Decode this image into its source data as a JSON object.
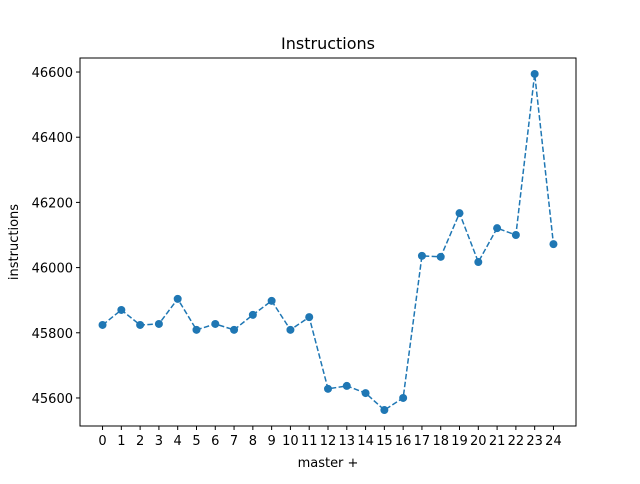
{
  "chart_data": {
    "type": "line",
    "title": "Instructions",
    "x_label": "master +",
    "y_label": "instructions",
    "x": [
      0,
      1,
      2,
      3,
      4,
      5,
      6,
      7,
      8,
      9,
      10,
      11,
      12,
      13,
      14,
      15,
      16,
      17,
      18,
      19,
      20,
      21,
      22,
      23,
      24
    ],
    "values": [
      45824,
      45870,
      45824,
      45827,
      45904,
      45809,
      45827,
      45809,
      45855,
      45898,
      45809,
      45848,
      45628,
      45637,
      45615,
      45563,
      45600,
      46036,
      46033,
      46167,
      46017,
      46121,
      46100,
      46594,
      46072
    ],
    "color": "#1f77b4",
    "line_style": "dashed",
    "marker": "circle",
    "xlim": [
      -1.2,
      25.2
    ],
    "xticks": [
      0,
      1,
      2,
      3,
      4,
      5,
      6,
      7,
      8,
      9,
      10,
      11,
      12,
      13,
      14,
      15,
      16,
      17,
      18,
      19,
      20,
      21,
      22,
      23,
      24
    ],
    "ylim": [
      45514,
      46643
    ],
    "yticks": [
      45600,
      45800,
      46000,
      46200,
      46400,
      46600
    ],
    "grid": false
  }
}
